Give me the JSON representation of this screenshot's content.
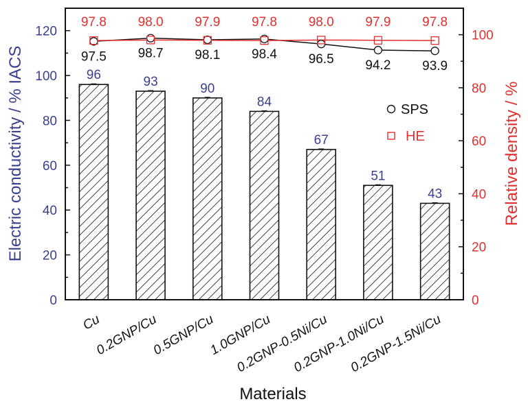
{
  "chart_data": {
    "type": "bar",
    "categories": [
      "Cu",
      "0.2GNP/Cu",
      "0.5GNP/Cu",
      "1.0GNP/Cu",
      "0.2GNP-0.5Ni/Cu",
      "0.2GNP-1.0Ni/Cu",
      "0.2GNP-1.5Ni/Cu"
    ],
    "xlabel": "Materials",
    "ylabel": "Electric conductivity / % IACS",
    "ylabel_right": "Relative density / %",
    "ylim": [
      0,
      130
    ],
    "ylim_right": [
      0,
      110
    ],
    "yticks": [
      0,
      20,
      40,
      60,
      80,
      100,
      120
    ],
    "yticks_right": [
      0,
      20,
      40,
      60,
      80,
      100
    ],
    "grid": false,
    "legend_position": "right-center",
    "series": [
      {
        "name": "Electric conductivity",
        "type": "bar",
        "axis": "left",
        "pattern": "hatch",
        "values": [
          96,
          93,
          90,
          84,
          67,
          51,
          43
        ],
        "labels": [
          "96",
          "93",
          "90",
          "84",
          "67",
          "51",
          "43"
        ],
        "color": "#3a3f8f"
      },
      {
        "name": "SPS",
        "type": "line",
        "axis": "right",
        "marker": "circle",
        "values": [
          97.5,
          98.7,
          98.1,
          98.4,
          96.5,
          94.2,
          93.9
        ],
        "labels": [
          "97.5",
          "98.7",
          "98.1",
          "98.4",
          "96.5",
          "94.2",
          "93.9"
        ],
        "color": "#111111"
      },
      {
        "name": "HE",
        "type": "line",
        "axis": "right",
        "marker": "square",
        "values": [
          97.8,
          98.0,
          97.9,
          97.8,
          98.0,
          97.9,
          97.8
        ],
        "labels": [
          "97.8",
          "98.0",
          "97.9",
          "97.8",
          "98.0",
          "97.9",
          "97.8"
        ],
        "color": "#e03030"
      }
    ],
    "legend": [
      {
        "name": "SPS",
        "marker": "circle",
        "color": "#111111"
      },
      {
        "name": "HE",
        "marker": "square",
        "color": "#e03030"
      }
    ],
    "colors": {
      "left_axis": "#3a3f8f",
      "right_axis": "#e03030"
    }
  }
}
